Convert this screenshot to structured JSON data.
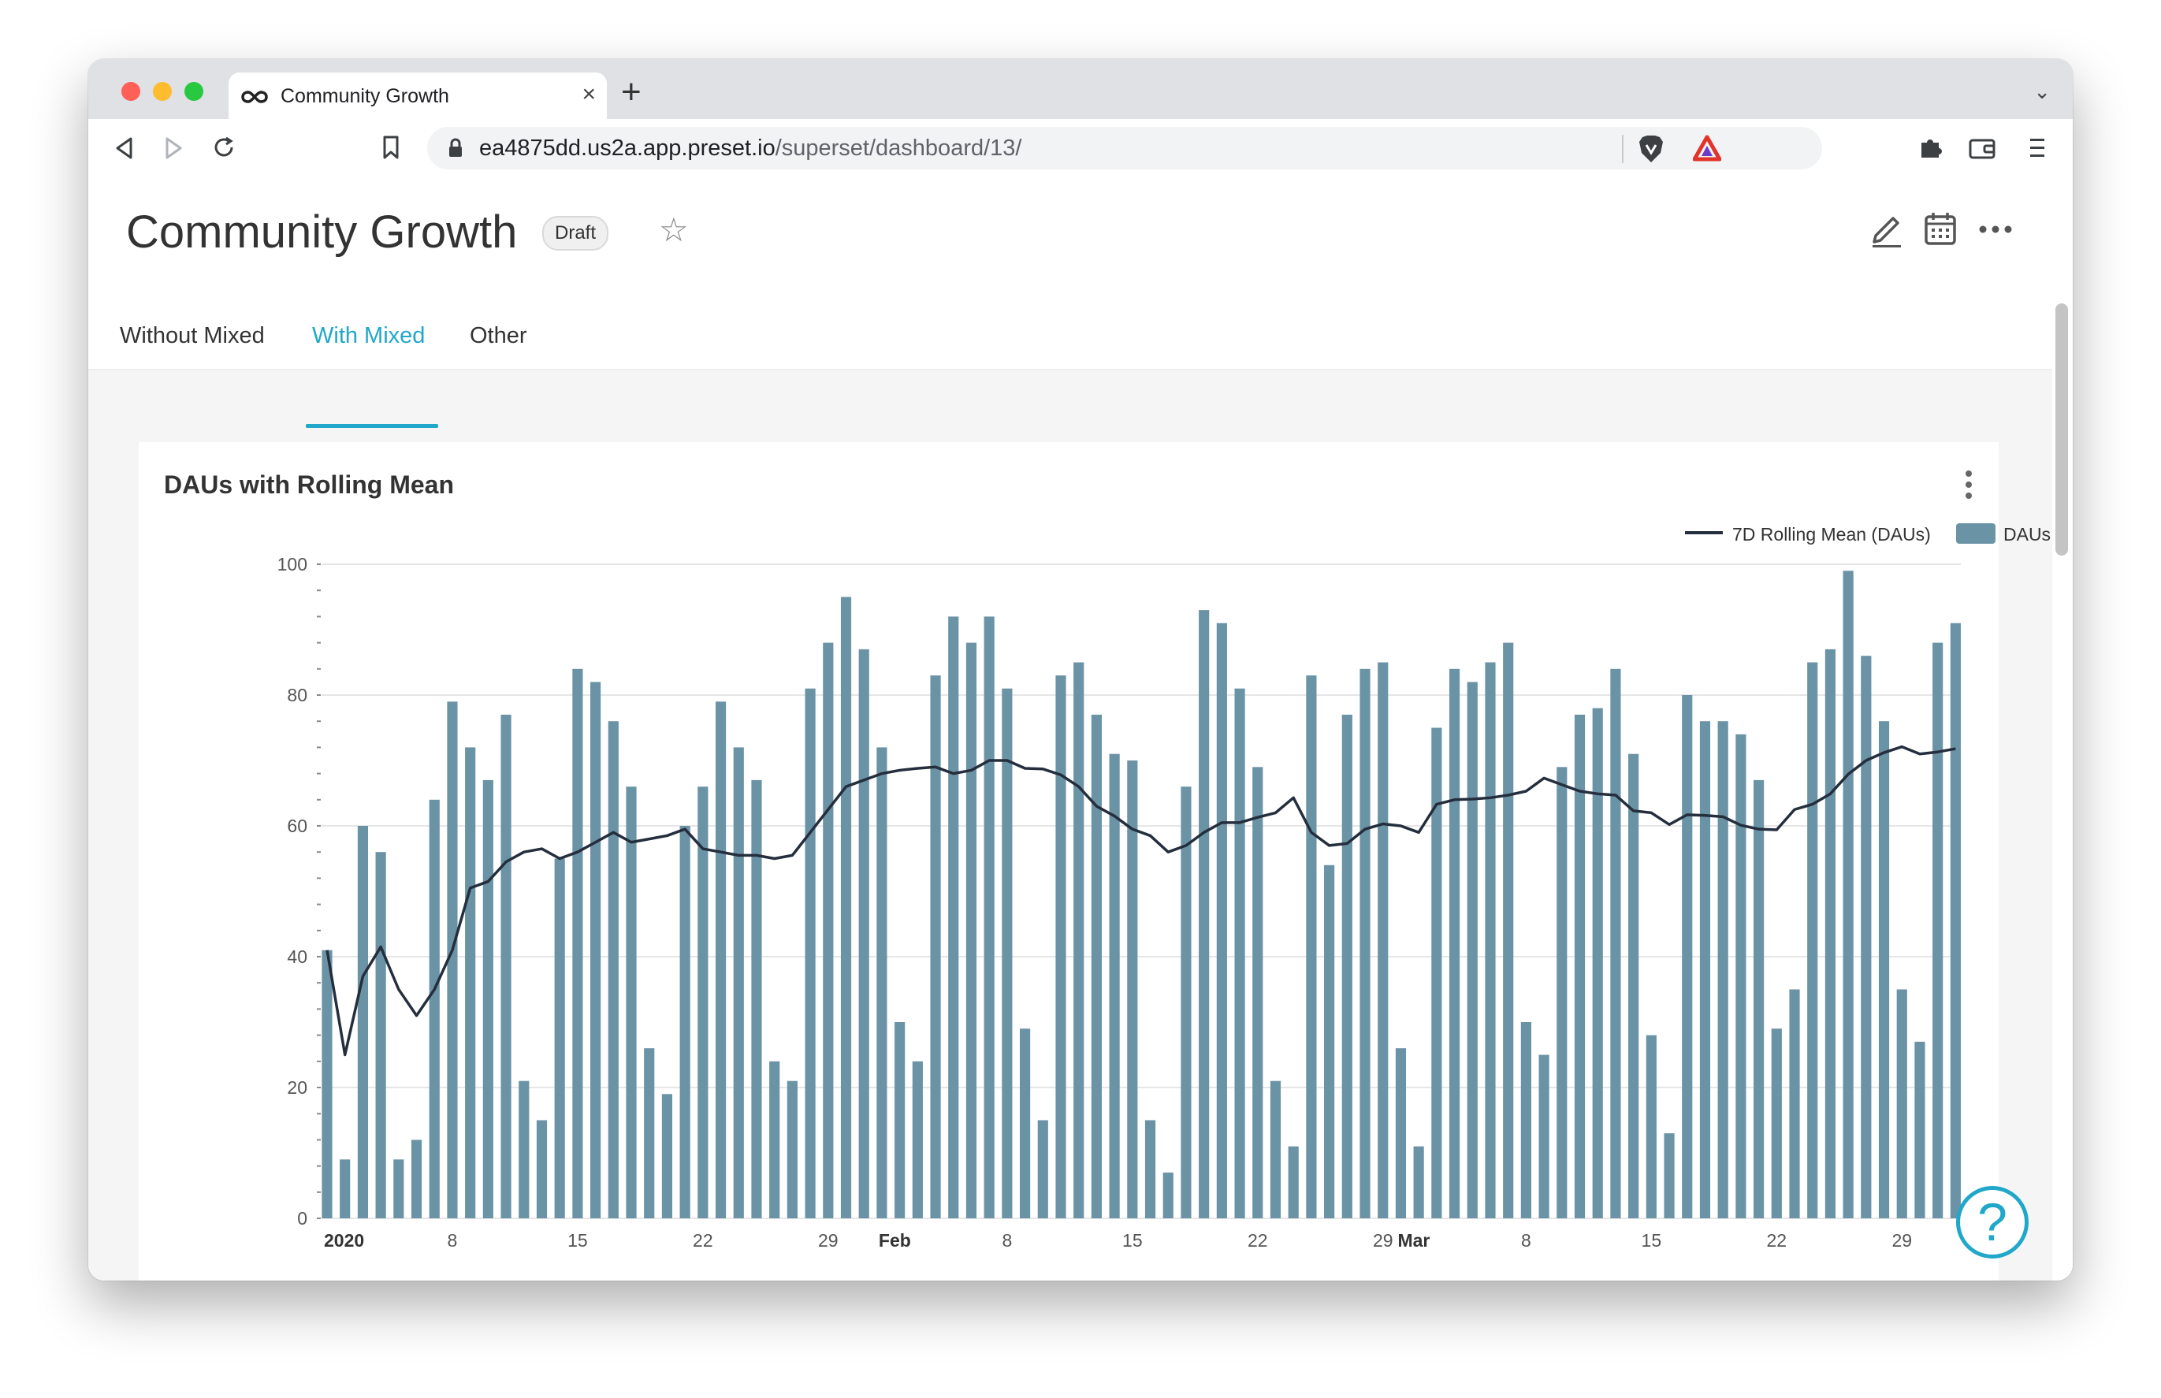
{
  "browser": {
    "tab_title": "Community Growth",
    "tab_close": "×",
    "new_tab": "+",
    "url_host": "ea4875dd.us2a.app.preset.io",
    "url_path": "/superset/dashboard/13/",
    "icons": [
      "back-icon",
      "forward-icon",
      "reload-icon",
      "bookmark-icon",
      "lock-icon",
      "brave-shield-icon",
      "brave-rewards-icon",
      "extensions-icon",
      "wallet-icon",
      "menu-icon",
      "tab-list-chevron-icon",
      "infinity-logo-icon"
    ]
  },
  "dashboard": {
    "title": "Community Growth",
    "status_badge": "Draft",
    "tabs": [
      {
        "label": "Without Mixed",
        "active": false
      },
      {
        "label": "With Mixed",
        "active": true
      },
      {
        "label": "Other",
        "active": false
      }
    ],
    "accent_color": "#20a7c9",
    "help_label": "?"
  },
  "chart": {
    "title": "DAUs with Rolling Mean",
    "legend": {
      "line": "7D Rolling Mean (DAUs)",
      "bar": "DAUs"
    }
  },
  "chart_data": {
    "type": "bar",
    "title": "DAUs with Rolling Mean",
    "xlabel": "",
    "ylabel": "",
    "ylim": [
      0,
      100
    ],
    "y_ticks": [
      0,
      20,
      40,
      60,
      80,
      100
    ],
    "x_tick_labels": [
      {
        "day_index": 0,
        "label": "2020",
        "bold": true
      },
      {
        "day_index": 7,
        "label": "8",
        "bold": false
      },
      {
        "day_index": 14,
        "label": "15",
        "bold": false
      },
      {
        "day_index": 21,
        "label": "22",
        "bold": false
      },
      {
        "day_index": 28,
        "label": "29",
        "bold": false
      },
      {
        "day_index": 31,
        "label": "Feb",
        "bold": true
      },
      {
        "day_index": 38,
        "label": "8",
        "bold": false
      },
      {
        "day_index": 45,
        "label": "15",
        "bold": false
      },
      {
        "day_index": 52,
        "label": "22",
        "bold": false
      },
      {
        "day_index": 59,
        "label": "29",
        "bold": false
      },
      {
        "day_index": 60,
        "label": "Mar",
        "bold": true
      },
      {
        "day_index": 67,
        "label": "8",
        "bold": false
      },
      {
        "day_index": 74,
        "label": "15",
        "bold": false
      },
      {
        "day_index": 81,
        "label": "22",
        "bold": false
      },
      {
        "day_index": 88,
        "label": "29",
        "bold": false
      }
    ],
    "grid": true,
    "legend_position": "top-right",
    "x_start": "2020-01-01",
    "x_end": "2020-03-31",
    "series": [
      {
        "name": "DAUs",
        "kind": "bar",
        "color": "#6b93a6",
        "values": [
          41,
          9,
          60,
          56,
          9,
          12,
          64,
          79,
          72,
          67,
          77,
          21,
          15,
          55,
          84,
          82,
          76,
          66,
          26,
          19,
          60,
          66,
          79,
          72,
          67,
          24,
          21,
          81,
          88,
          95,
          87,
          72,
          30,
          24,
          83,
          92,
          88,
          92,
          81,
          29,
          15,
          83,
          85,
          77,
          71,
          70,
          15,
          7,
          66,
          93,
          91,
          81,
          69,
          21,
          11,
          83,
          54,
          77,
          84,
          85,
          26,
          11,
          75,
          84,
          82,
          85,
          88,
          30,
          25,
          69,
          77,
          78,
          84,
          71,
          28,
          13,
          80,
          76,
          76,
          74,
          67,
          29,
          35,
          85,
          87,
          99,
          86,
          76,
          35,
          27,
          88,
          91
        ]
      },
      {
        "name": "7D Rolling Mean (DAUs)",
        "kind": "line",
        "color": "#242e3d",
        "values": [
          41,
          25,
          37,
          41.5,
          35,
          31,
          35,
          41,
          50.5,
          51.5,
          54.5,
          56,
          56.5,
          55,
          56,
          57.5,
          59,
          57.5,
          58,
          58.5,
          59.5,
          56.5,
          56,
          55.5,
          55.5,
          55,
          55.5,
          59,
          62.5,
          66,
          67,
          68,
          68.5,
          68.8,
          69,
          68,
          68.5,
          70,
          70,
          68.8,
          68.7,
          67.8,
          66,
          63,
          61.5,
          59.5,
          58.5,
          56,
          57,
          59,
          60.5,
          60.5,
          61.3,
          62,
          64.3,
          59,
          57,
          57.3,
          59.5,
          60.3,
          60,
          59,
          63.3,
          64,
          64.1,
          64.3,
          64.7,
          65.3,
          67.3,
          66.3,
          65.3,
          64.9,
          64.7,
          62.3,
          62,
          60.2,
          61.7,
          61.6,
          61.4,
          60.1,
          59.5,
          59.4,
          62.5,
          63.3,
          64.9,
          67.9,
          70,
          71.2,
          72.1,
          71,
          71.3,
          71.8
        ]
      }
    ]
  }
}
